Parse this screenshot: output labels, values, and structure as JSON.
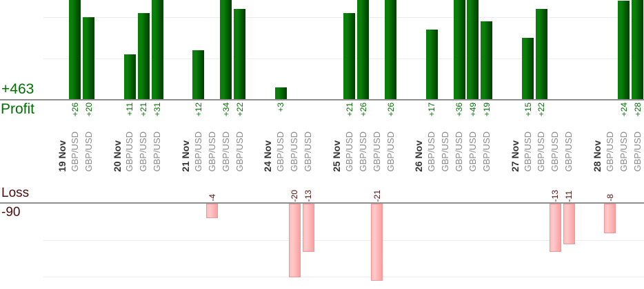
{
  "chart_data": {
    "type": "bar",
    "orientation": "vertical",
    "layout_hint": "two stacked panels sharing one x-axis: profits grow up from upper baseline, losses grow down from lower baseline; value labels rotated 90deg; gridline step 10; no legend",
    "profit": {
      "axis_label": "Profit",
      "total_label": "+463",
      "gridline_values": [
        10,
        20
      ],
      "visible_range": [
        0,
        24
      ]
    },
    "loss": {
      "axis_label": "Loss",
      "total_label": "-90",
      "gridline_values": [
        -10,
        -20
      ],
      "visible_range": [
        0,
        -23
      ]
    },
    "groups": [
      {
        "date": "19 Nov",
        "trades": [
          {
            "symbol": "GBP/USD",
            "value": 26,
            "label": "+26"
          },
          {
            "symbol": "GBP/USD",
            "value": 20,
            "label": "+20"
          }
        ]
      },
      {
        "date": "20 Nov",
        "trades": [
          {
            "symbol": "GBP/USD",
            "value": 11,
            "label": "+11"
          },
          {
            "symbol": "GBP/USD",
            "value": 21,
            "label": "+21"
          },
          {
            "symbol": "GBP/USD",
            "value": 31,
            "label": "+31"
          }
        ]
      },
      {
        "date": "21 Nov",
        "trades": [
          {
            "symbol": "GBP/USD",
            "value": 12,
            "label": "+12"
          },
          {
            "symbol": "GBP/USD",
            "value": -4,
            "label": "-4"
          },
          {
            "symbol": "GBP/USD",
            "value": 34,
            "label": "+34"
          },
          {
            "symbol": "GBP/USD",
            "value": 22,
            "label": "+22"
          }
        ]
      },
      {
        "date": "24 Nov",
        "trades": [
          {
            "symbol": "GBP/USD",
            "value": 3,
            "label": "+3"
          },
          {
            "symbol": "GBP/USD",
            "value": -20,
            "label": "-20"
          },
          {
            "symbol": "GBP/USD",
            "value": -13,
            "label": "-13"
          }
        ]
      },
      {
        "date": "25 Nov",
        "trades": [
          {
            "symbol": "GBP/USD",
            "value": 21,
            "label": "+21"
          },
          {
            "symbol": "GBP/USD",
            "value": 26,
            "label": "+26"
          },
          {
            "symbol": "GBP/USD",
            "value": -21,
            "label": "-21"
          },
          {
            "symbol": "GBP/USD",
            "value": 26,
            "label": "+26"
          }
        ]
      },
      {
        "date": "26 Nov",
        "trades": [
          {
            "symbol": "GBP/USD",
            "value": 17,
            "label": "+17"
          },
          {
            "symbol": "GBP/USD",
            "value": 0,
            "label": ""
          },
          {
            "symbol": "GBP/USD",
            "value": 36,
            "label": "+36"
          },
          {
            "symbol": "GBP/USD",
            "value": 49,
            "label": "+49"
          },
          {
            "symbol": "GBP/USD",
            "value": 19,
            "label": "+19"
          }
        ]
      },
      {
        "date": "27 Nov",
        "trades": [
          {
            "symbol": "GBP/USD",
            "value": 15,
            "label": "+15"
          },
          {
            "symbol": "GBP/USD",
            "value": 22,
            "label": "+22"
          },
          {
            "symbol": "GBP/USD",
            "value": -13,
            "label": "-13"
          },
          {
            "symbol": "GBP/USD",
            "value": -11,
            "label": "-11"
          }
        ]
      },
      {
        "date": "28 Nov",
        "trades": [
          {
            "symbol": "GBP/USD",
            "value": -8,
            "label": "-8"
          },
          {
            "symbol": "GBP/USD",
            "value": 24,
            "label": "+24"
          },
          {
            "symbol": "GBP/USD",
            "value": 28,
            "label": "+28"
          }
        ]
      }
    ],
    "colors": {
      "profit_bar_light": "#0a7f0a",
      "profit_bar_dark": "#003a00",
      "profit_text": "#007000",
      "loss_bar_left": "#ffbcbc",
      "loss_bar_light": "#ffcaca",
      "loss_bar_right": "#f9a0a0",
      "loss_bar_border": "#f59595",
      "loss_text": "#541010",
      "loss_text_big": "#4a0c0c",
      "axis_line": "#8f8f8f",
      "gridline": "#ededed",
      "date_text": "#333333",
      "symbol_text": "#8a8a8a"
    }
  }
}
